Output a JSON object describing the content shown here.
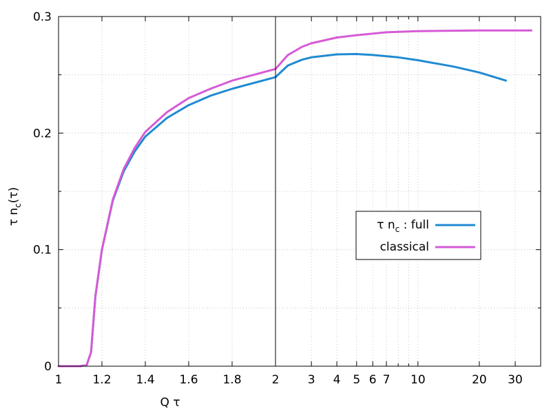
{
  "chart_data": {
    "type": "line",
    "xlabel": "Q τ",
    "ylabel": "τ n_c(τ)",
    "ylim": [
      0,
      0.3
    ],
    "yticks": [
      "0",
      "0.1",
      "0.2",
      "0.3"
    ],
    "y_tick_values": [
      0,
      0.1,
      0.2,
      0.3
    ],
    "grid": true,
    "legend_position": "right-middle",
    "legend_label_prefix": "τ n",
    "legend_label_sub": "c",
    "legend_label_sep": ":",
    "panels": [
      {
        "scale": "linear",
        "xlim": [
          1,
          2
        ],
        "xticks": [
          "1",
          "1.2",
          "1.4",
          "1.6",
          "1.8",
          "2"
        ],
        "x_tick_values": [
          1,
          1.2,
          1.4,
          1.6,
          1.8,
          2
        ]
      },
      {
        "scale": "log",
        "xlim": [
          2,
          40
        ],
        "xticks": [
          "2",
          "3",
          "4",
          "5",
          "6",
          "7",
          "10",
          "20",
          "30"
        ],
        "x_tick_values": [
          2,
          3,
          4,
          5,
          6,
          7,
          10,
          20,
          30
        ],
        "minor_ticks": [
          8,
          9,
          40
        ]
      }
    ],
    "series": [
      {
        "name": "full",
        "color": "#1f8ad2",
        "points": [
          [
            1.0,
            0
          ],
          [
            1.1,
            0
          ],
          [
            1.13,
            0.001
          ],
          [
            1.15,
            0.012
          ],
          [
            1.17,
            0.06
          ],
          [
            1.2,
            0.1
          ],
          [
            1.25,
            0.142
          ],
          [
            1.3,
            0.167
          ],
          [
            1.35,
            0.184
          ],
          [
            1.4,
            0.197
          ],
          [
            1.5,
            0.213
          ],
          [
            1.6,
            0.224
          ],
          [
            1.7,
            0.232
          ],
          [
            1.8,
            0.238
          ],
          [
            1.9,
            0.243
          ],
          [
            2.0,
            0.248
          ],
          [
            2.3,
            0.258
          ],
          [
            2.7,
            0.263
          ],
          [
            3.0,
            0.265
          ],
          [
            4.0,
            0.2675
          ],
          [
            5.0,
            0.2678
          ],
          [
            6.0,
            0.267
          ],
          [
            8.0,
            0.265
          ],
          [
            10.0,
            0.2625
          ],
          [
            15.0,
            0.257
          ],
          [
            20.0,
            0.252
          ],
          [
            27.0,
            0.245
          ]
        ]
      },
      {
        "name": "classical",
        "color": "#d65ad6",
        "points": [
          [
            1.0,
            0
          ],
          [
            1.1,
            0
          ],
          [
            1.13,
            0.001
          ],
          [
            1.15,
            0.012
          ],
          [
            1.17,
            0.06
          ],
          [
            1.2,
            0.1
          ],
          [
            1.25,
            0.143
          ],
          [
            1.3,
            0.169
          ],
          [
            1.35,
            0.187
          ],
          [
            1.4,
            0.201
          ],
          [
            1.5,
            0.218
          ],
          [
            1.6,
            0.23
          ],
          [
            1.7,
            0.238
          ],
          [
            1.8,
            0.245
          ],
          [
            1.9,
            0.25
          ],
          [
            2.0,
            0.255
          ],
          [
            2.3,
            0.267
          ],
          [
            2.7,
            0.274
          ],
          [
            3.0,
            0.277
          ],
          [
            4.0,
            0.282
          ],
          [
            5.0,
            0.284
          ],
          [
            7.0,
            0.2865
          ],
          [
            10.0,
            0.2875
          ],
          [
            20.0,
            0.288
          ],
          [
            36.0,
            0.288
          ]
        ]
      }
    ]
  }
}
